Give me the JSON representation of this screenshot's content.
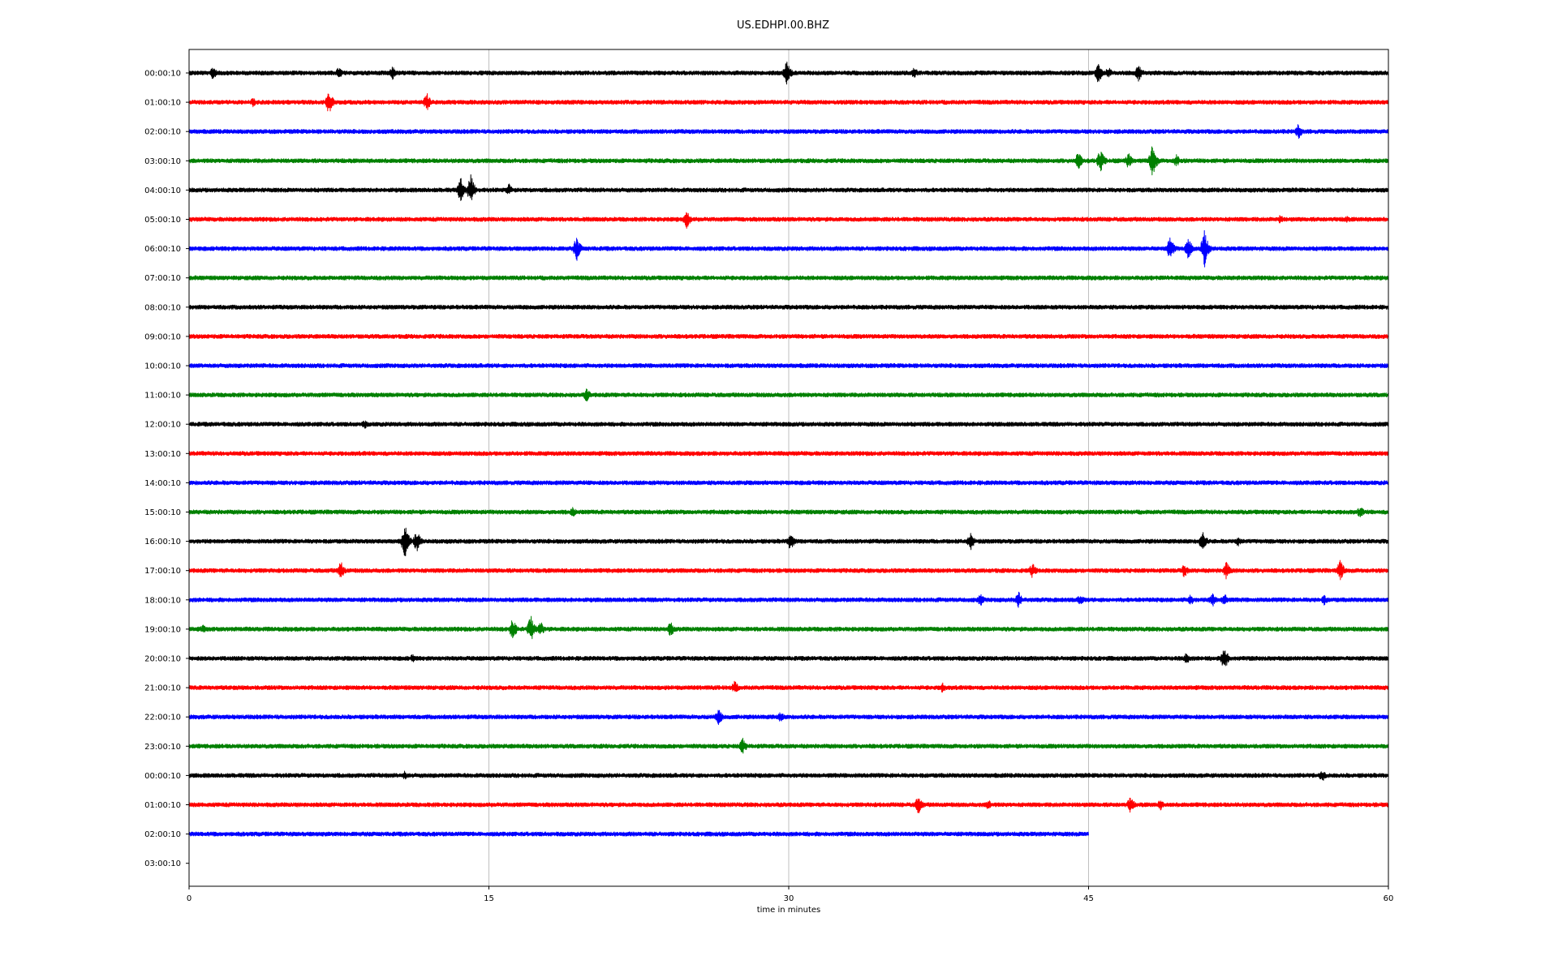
{
  "chart_data": {
    "type": "line",
    "title": "US.EDHPI.00.BHZ",
    "xlabel": "time in minutes",
    "ylabel": "",
    "xlim": [
      0,
      60
    ],
    "x_ticks": [
      "0",
      "15",
      "30",
      "45",
      "60"
    ],
    "x_tick_values": [
      0,
      15,
      30,
      45,
      60
    ],
    "grid": "vertical",
    "row_labels": [
      "00:00:10",
      "01:00:10",
      "02:00:10",
      "03:00:10",
      "04:00:10",
      "05:00:10",
      "06:00:10",
      "07:00:10",
      "08:00:10",
      "09:00:10",
      "10:00:10",
      "11:00:10",
      "12:00:10",
      "13:00:10",
      "14:00:10",
      "15:00:10",
      "16:00:10",
      "17:00:10",
      "18:00:10",
      "19:00:10",
      "20:00:10",
      "21:00:10",
      "22:00:10",
      "23:00:10",
      "00:00:10",
      "01:00:10",
      "02:00:10",
      "03:00:10"
    ],
    "trace_colors": [
      "#000000",
      "#ff0000",
      "#0000ff",
      "#008000"
    ],
    "trace_end_minutes": [
      60,
      60,
      60,
      60,
      60,
      60,
      60,
      60,
      60,
      60,
      60,
      60,
      60,
      60,
      60,
      60,
      60,
      60,
      60,
      60,
      60,
      60,
      60,
      60,
      60,
      60,
      45,
      0
    ],
    "events": [
      {
        "row": 0,
        "t": 1.2,
        "amp": 9
      },
      {
        "row": 0,
        "t": 7.5,
        "amp": 8
      },
      {
        "row": 0,
        "t": 10.2,
        "amp": 9
      },
      {
        "row": 0,
        "t": 29.9,
        "amp": 16
      },
      {
        "row": 0,
        "t": 36.3,
        "amp": 8
      },
      {
        "row": 0,
        "t": 45.5,
        "amp": 14
      },
      {
        "row": 0,
        "t": 46,
        "amp": 8
      },
      {
        "row": 0,
        "t": 47.5,
        "amp": 12
      },
      {
        "row": 1,
        "t": 3.2,
        "amp": 6
      },
      {
        "row": 1,
        "t": 7,
        "amp": 16
      },
      {
        "row": 1,
        "t": 11.9,
        "amp": 12
      },
      {
        "row": 2,
        "t": 55.5,
        "amp": 10
      },
      {
        "row": 3,
        "t": 44.5,
        "amp": 12
      },
      {
        "row": 3,
        "t": 45.6,
        "amp": 16
      },
      {
        "row": 3,
        "t": 47,
        "amp": 10
      },
      {
        "row": 3,
        "t": 48.2,
        "amp": 22
      },
      {
        "row": 3,
        "t": 49.4,
        "amp": 9
      },
      {
        "row": 4,
        "t": 13.6,
        "amp": 16
      },
      {
        "row": 4,
        "t": 14.1,
        "amp": 20
      },
      {
        "row": 4,
        "t": 16,
        "amp": 8
      },
      {
        "row": 5,
        "t": 24.9,
        "amp": 12
      },
      {
        "row": 5,
        "t": 54.6,
        "amp": 6
      },
      {
        "row": 5,
        "t": 57.9,
        "amp": 5
      },
      {
        "row": 6,
        "t": 19.4,
        "amp": 16
      },
      {
        "row": 6,
        "t": 49.1,
        "amp": 16
      },
      {
        "row": 6,
        "t": 50,
        "amp": 14
      },
      {
        "row": 6,
        "t": 50.8,
        "amp": 24
      },
      {
        "row": 11,
        "t": 19.9,
        "amp": 9
      },
      {
        "row": 12,
        "t": 8.8,
        "amp": 6
      },
      {
        "row": 15,
        "t": 19.2,
        "amp": 7
      },
      {
        "row": 15,
        "t": 58.6,
        "amp": 8
      },
      {
        "row": 16,
        "t": 10.8,
        "amp": 22
      },
      {
        "row": 16,
        "t": 11.4,
        "amp": 14
      },
      {
        "row": 16,
        "t": 30.1,
        "amp": 12
      },
      {
        "row": 16,
        "t": 39.1,
        "amp": 12
      },
      {
        "row": 16,
        "t": 50.7,
        "amp": 14
      },
      {
        "row": 16,
        "t": 52.5,
        "amp": 7
      },
      {
        "row": 17,
        "t": 7.6,
        "amp": 12
      },
      {
        "row": 17,
        "t": 42.2,
        "amp": 10
      },
      {
        "row": 17,
        "t": 49.8,
        "amp": 9
      },
      {
        "row": 17,
        "t": 51.9,
        "amp": 12
      },
      {
        "row": 17,
        "t": 57.6,
        "amp": 14
      },
      {
        "row": 18,
        "t": 39.6,
        "amp": 8
      },
      {
        "row": 18,
        "t": 41.5,
        "amp": 11
      },
      {
        "row": 18,
        "t": 44.6,
        "amp": 8
      },
      {
        "row": 18,
        "t": 50.1,
        "amp": 8
      },
      {
        "row": 18,
        "t": 51.2,
        "amp": 10
      },
      {
        "row": 18,
        "t": 51.8,
        "amp": 9
      },
      {
        "row": 18,
        "t": 56.8,
        "amp": 7
      },
      {
        "row": 19,
        "t": 0.7,
        "amp": 6
      },
      {
        "row": 19,
        "t": 16.2,
        "amp": 14
      },
      {
        "row": 19,
        "t": 17.1,
        "amp": 18
      },
      {
        "row": 19,
        "t": 17.6,
        "amp": 10
      },
      {
        "row": 19,
        "t": 24.1,
        "amp": 10
      },
      {
        "row": 20,
        "t": 11.2,
        "amp": 6
      },
      {
        "row": 20,
        "t": 49.9,
        "amp": 8
      },
      {
        "row": 20,
        "t": 51.8,
        "amp": 16
      },
      {
        "row": 21,
        "t": 27.3,
        "amp": 9
      },
      {
        "row": 21,
        "t": 37.7,
        "amp": 7
      },
      {
        "row": 22,
        "t": 26.5,
        "amp": 11
      },
      {
        "row": 22,
        "t": 29.6,
        "amp": 7
      },
      {
        "row": 23,
        "t": 27.7,
        "amp": 11
      },
      {
        "row": 24,
        "t": 10.8,
        "amp": 6
      },
      {
        "row": 24,
        "t": 56.7,
        "amp": 8
      },
      {
        "row": 25,
        "t": 36.5,
        "amp": 13
      },
      {
        "row": 25,
        "t": 40,
        "amp": 7
      },
      {
        "row": 25,
        "t": 47.1,
        "amp": 11
      },
      {
        "row": 25,
        "t": 48.6,
        "amp": 7
      }
    ]
  }
}
